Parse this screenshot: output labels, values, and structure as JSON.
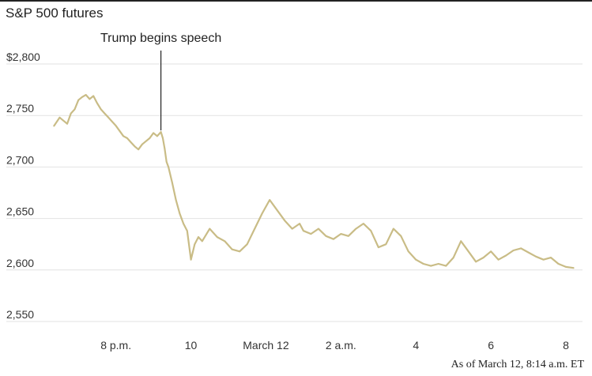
{
  "chart_data": {
    "type": "line",
    "title": "S&P 500 futures",
    "xlabel": "",
    "ylabel": "",
    "ylim": [
      2540,
      2810
    ],
    "y_ticks": [
      {
        "value": 2800,
        "label": "$2,800"
      },
      {
        "value": 2750,
        "label": "2,750"
      },
      {
        "value": 2700,
        "label": "2,700"
      },
      {
        "value": 2650,
        "label": "2,650"
      },
      {
        "value": 2600,
        "label": "2,600"
      },
      {
        "value": 2550,
        "label": "2,550"
      }
    ],
    "x_unit": "hours since March 11, 7 p.m. ET",
    "xlim": [
      -0.7,
      13.4
    ],
    "x_ticks": [
      {
        "value": 1,
        "label": "8 p.m."
      },
      {
        "value": 3,
        "label": "10"
      },
      {
        "value": 5,
        "label": "March 12"
      },
      {
        "value": 7,
        "label": "2 a.m."
      },
      {
        "value": 9,
        "label": "4"
      },
      {
        "value": 11,
        "label": "6"
      },
      {
        "value": 13,
        "label": "8"
      }
    ],
    "grid": "horizontal",
    "color": "#c9bc86",
    "annotation": {
      "label": "Trump begins speech",
      "x": 2.2
    },
    "footnote": "As of March 12, 8:14 a.m. ET",
    "series": [
      {
        "x": [
          -0.65,
          -0.5,
          -0.4,
          -0.3,
          -0.2,
          -0.1,
          0.0,
          0.1,
          0.2,
          0.3,
          0.4,
          0.5,
          0.6,
          0.7,
          0.8,
          0.9,
          1.0,
          1.1,
          1.2,
          1.3,
          1.4,
          1.5,
          1.6,
          1.7,
          1.8,
          1.9,
          2.0,
          2.1,
          2.2,
          2.25,
          2.3,
          2.35,
          2.4,
          2.5,
          2.6,
          2.7,
          2.8,
          2.9,
          3.0,
          3.1,
          3.2,
          3.3,
          3.5,
          3.7,
          3.9,
          4.1,
          4.3,
          4.5,
          4.7,
          4.9,
          5.1,
          5.3,
          5.5,
          5.7,
          5.9,
          6.0,
          6.2,
          6.4,
          6.6,
          6.8,
          7.0,
          7.2,
          7.4,
          7.6,
          7.8,
          8.0,
          8.2,
          8.4,
          8.6,
          8.8,
          9.0,
          9.2,
          9.4,
          9.6,
          9.8,
          10.0,
          10.2,
          10.4,
          10.6,
          10.8,
          11.0,
          11.2,
          11.4,
          11.6,
          11.8,
          12.0,
          12.2,
          12.4,
          12.6,
          12.8,
          13.0,
          13.2
        ],
        "values": [
          2740,
          2748,
          2745,
          2742,
          2752,
          2756,
          2765,
          2768,
          2770,
          2766,
          2769,
          2762,
          2756,
          2752,
          2748,
          2744,
          2740,
          2735,
          2730,
          2728,
          2724,
          2720,
          2717,
          2722,
          2725,
          2728,
          2733,
          2730,
          2734,
          2728,
          2718,
          2705,
          2700,
          2685,
          2668,
          2655,
          2645,
          2638,
          2610,
          2625,
          2632,
          2628,
          2640,
          2632,
          2628,
          2620,
          2618,
          2625,
          2640,
          2655,
          2668,
          2658,
          2648,
          2640,
          2645,
          2638,
          2635,
          2640,
          2633,
          2630,
          2635,
          2633,
          2640,
          2645,
          2638,
          2622,
          2625,
          2640,
          2633,
          2618,
          2610,
          2606,
          2604,
          2606,
          2604,
          2612,
          2628,
          2618,
          2608,
          2612,
          2618,
          2610,
          2614,
          2619,
          2621,
          2617,
          2613,
          2610,
          2612,
          2606,
          2603,
          2602
        ]
      }
    ]
  }
}
